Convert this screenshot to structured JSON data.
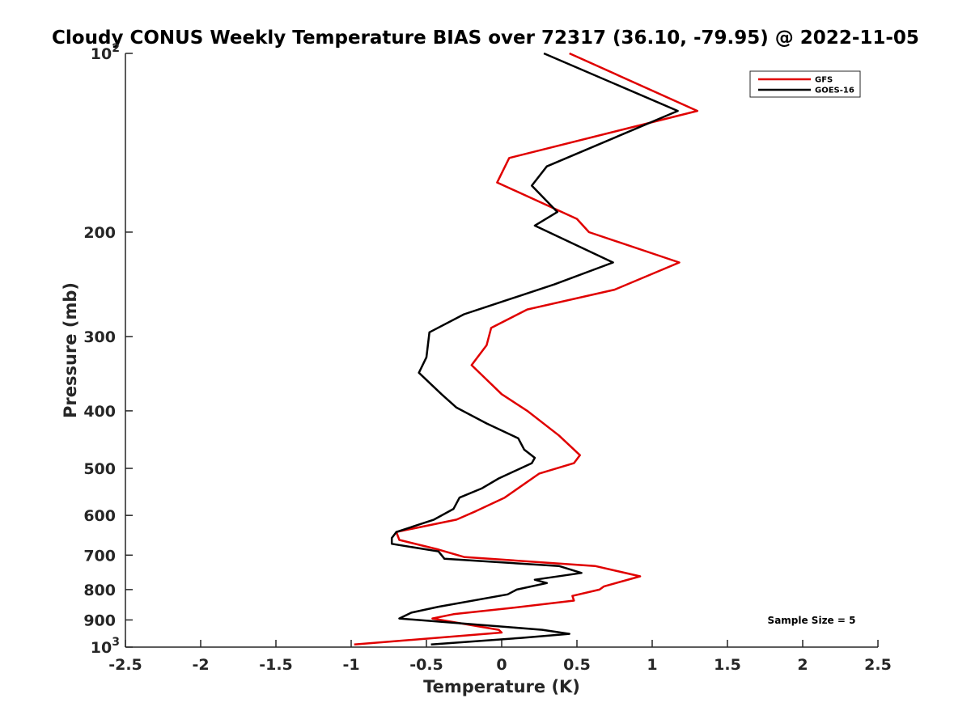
{
  "chart_data": {
    "type": "line",
    "title": "Cloudy CONUS Weekly Temperature BIAS over 72317 (36.10, -79.95) @ 2022-11-05",
    "xlabel": "Temperature (K)",
    "ylabel": "Pressure (mb)",
    "xlim": [
      -2.5,
      2.5
    ],
    "ylim": [
      100,
      1000
    ],
    "y_scale": "log",
    "y_reversed": true,
    "grid": false,
    "legend_position": "top-right",
    "x_ticks": [
      "-2.5",
      "-2",
      "-1.5",
      "-1",
      "-0.5",
      "0",
      "0.5",
      "1",
      "1.5",
      "2",
      "2.5"
    ],
    "y_ticks": [
      {
        "value": 100,
        "base": "10",
        "exp": "2"
      },
      {
        "value": 200,
        "label": "200"
      },
      {
        "value": 300,
        "label": "300"
      },
      {
        "value": 400,
        "label": "400"
      },
      {
        "value": 500,
        "label": "500"
      },
      {
        "value": 600,
        "label": "600"
      },
      {
        "value": 700,
        "label": "700"
      },
      {
        "value": 800,
        "label": "800"
      },
      {
        "value": 900,
        "label": "900"
      },
      {
        "value": 1000,
        "base": "10",
        "exp": "3"
      }
    ],
    "annotation": "Sample Size = 5",
    "series": [
      {
        "name": "GFS",
        "color": "#e00000",
        "points": [
          [
            0.45,
            100
          ],
          [
            1.3,
            125
          ],
          [
            0.05,
            150
          ],
          [
            -0.03,
            165
          ],
          [
            0.5,
            190
          ],
          [
            0.58,
            200
          ],
          [
            1.18,
            225
          ],
          [
            0.75,
            250
          ],
          [
            0.17,
            270
          ],
          [
            -0.07,
            290
          ],
          [
            -0.1,
            310
          ],
          [
            -0.2,
            335
          ],
          [
            0.0,
            375
          ],
          [
            0.17,
            400
          ],
          [
            0.38,
            440
          ],
          [
            0.52,
            475
          ],
          [
            0.48,
            490
          ],
          [
            0.25,
            510
          ],
          [
            0.02,
            560
          ],
          [
            -0.17,
            590
          ],
          [
            -0.3,
            610
          ],
          [
            -0.7,
            640
          ],
          [
            -0.68,
            660
          ],
          [
            -0.42,
            685
          ],
          [
            -0.25,
            705
          ],
          [
            0.62,
            730
          ],
          [
            0.92,
            760
          ],
          [
            0.68,
            790
          ],
          [
            0.65,
            800
          ],
          [
            0.47,
            820
          ],
          [
            0.48,
            835
          ],
          [
            0.05,
            860
          ],
          [
            -0.32,
            880
          ],
          [
            -0.46,
            895
          ],
          [
            -0.02,
            935
          ],
          [
            0.0,
            945
          ],
          [
            -0.98,
            990
          ]
        ]
      },
      {
        "name": "GOES-16",
        "color": "#000000",
        "points": [
          [
            0.28,
            100
          ],
          [
            1.17,
            125
          ],
          [
            0.3,
            155
          ],
          [
            0.2,
            167
          ],
          [
            0.37,
            185
          ],
          [
            0.22,
            195
          ],
          [
            0.74,
            225
          ],
          [
            0.35,
            245
          ],
          [
            -0.25,
            275
          ],
          [
            -0.48,
            295
          ],
          [
            -0.5,
            325
          ],
          [
            -0.55,
            345
          ],
          [
            -0.4,
            375
          ],
          [
            -0.3,
            395
          ],
          [
            -0.1,
            420
          ],
          [
            0.11,
            445
          ],
          [
            0.15,
            465
          ],
          [
            0.22,
            480
          ],
          [
            0.2,
            490
          ],
          [
            -0.02,
            520
          ],
          [
            -0.13,
            540
          ],
          [
            -0.28,
            560
          ],
          [
            -0.32,
            585
          ],
          [
            -0.45,
            610
          ],
          [
            -0.7,
            640
          ],
          [
            -0.73,
            655
          ],
          [
            -0.73,
            670
          ],
          [
            -0.42,
            690
          ],
          [
            -0.38,
            710
          ],
          [
            0.38,
            730
          ],
          [
            0.53,
            750
          ],
          [
            0.22,
            770
          ],
          [
            0.3,
            780
          ],
          [
            0.1,
            800
          ],
          [
            0.04,
            815
          ],
          [
            -0.42,
            855
          ],
          [
            -0.6,
            875
          ],
          [
            -0.68,
            895
          ],
          [
            0.27,
            935
          ],
          [
            0.45,
            950
          ],
          [
            0.13,
            965
          ],
          [
            -0.47,
            990
          ]
        ]
      }
    ]
  }
}
